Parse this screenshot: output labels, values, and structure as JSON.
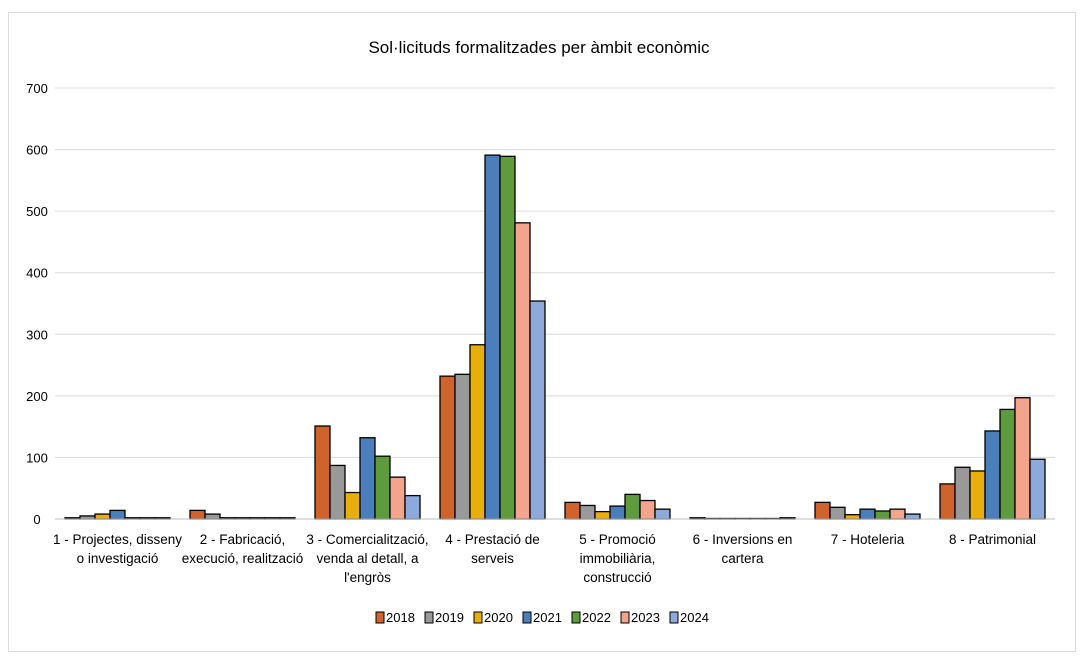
{
  "chart_data": {
    "type": "bar",
    "title": "Sol·licituds formalitzades  per àmbit econòmic",
    "xlabel": "",
    "ylabel": "",
    "ylim": [
      0,
      700
    ],
    "yticks": [
      0,
      100,
      200,
      300,
      400,
      500,
      600,
      700
    ],
    "grid": true,
    "legend": "bottom",
    "categories": [
      [
        "1 - Projectes, disseny",
        "o investigació"
      ],
      [
        "2 - Fabricació,",
        "execució, realització"
      ],
      [
        "3 - Comercialització,",
        "venda al detall, a",
        "l'engròs"
      ],
      [
        "4 - Prestació de",
        "serveis"
      ],
      [
        "5 - Promoció",
        "immobiliària,",
        "construcció"
      ],
      [
        "6 - Inversions en",
        "cartera"
      ],
      [
        "7 - Hoteleria"
      ],
      [
        "8 - Patrimonial"
      ]
    ],
    "series": [
      {
        "name": "2018",
        "color": "#d0632b",
        "values": [
          2,
          14,
          151,
          232,
          27,
          2,
          27,
          57
        ]
      },
      {
        "name": "2019",
        "color": "#999999",
        "values": [
          5,
          8,
          87,
          235,
          22,
          0,
          19,
          84
        ]
      },
      {
        "name": "2020",
        "color": "#e8ae0c",
        "values": [
          8,
          2,
          43,
          283,
          12,
          0,
          7,
          78
        ]
      },
      {
        "name": "2021",
        "color": "#4a7fbb",
        "values": [
          14,
          2,
          132,
          591,
          21,
          0,
          16,
          143
        ]
      },
      {
        "name": "2022",
        "color": "#5d9b3c",
        "values": [
          2,
          2,
          102,
          589,
          40,
          0,
          13,
          178
        ]
      },
      {
        "name": "2023",
        "color": "#f2a58c",
        "values": [
          2,
          2,
          68,
          481,
          30,
          0,
          16,
          197
        ]
      },
      {
        "name": "2024",
        "color": "#8ea9db",
        "values": [
          2,
          2,
          38,
          354,
          16,
          2,
          8,
          97
        ]
      }
    ]
  }
}
